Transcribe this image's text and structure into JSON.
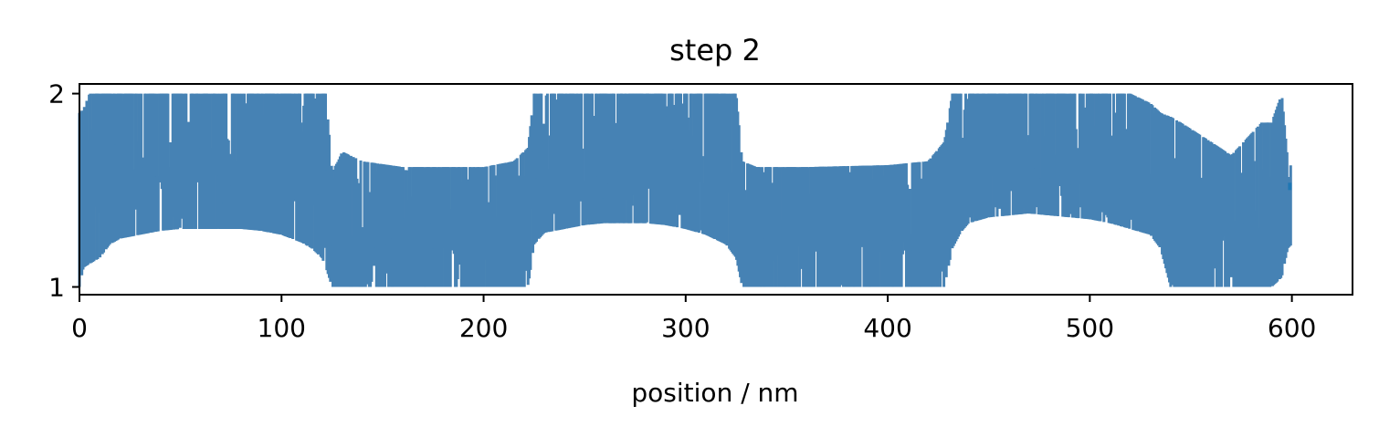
{
  "chart_data": {
    "type": "line",
    "title": "step 2",
    "xlabel": "position / nm",
    "ylabel": "",
    "xlim": [
      0,
      630
    ],
    "ylim": [
      0.96,
      2.05
    ],
    "xticks": [
      0,
      100,
      200,
      300,
      400,
      500,
      600
    ],
    "xtick_labels": [
      "0",
      "100",
      "200",
      "300",
      "400",
      "500",
      "600"
    ],
    "yticks": [
      1,
      2
    ],
    "ytick_labels": [
      "1",
      "2"
    ],
    "grid": false,
    "legend": "none",
    "series": [
      {
        "color": "#4682b4",
        "style": "dense oscillating trace; lower envelope values given",
        "x": [
          0,
          2,
          5,
          10,
          15,
          20,
          30,
          40,
          50,
          60,
          70,
          80,
          90,
          100,
          105,
          110,
          115,
          120,
          122,
          125,
          128,
          130,
          140,
          160,
          200,
          215,
          222,
          225,
          230,
          240,
          250,
          260,
          270,
          280,
          290,
          300,
          310,
          320,
          325,
          328,
          335,
          340,
          360,
          400,
          420,
          428,
          432,
          436,
          440,
          450,
          460,
          470,
          480,
          490,
          500,
          510,
          520,
          530,
          535,
          540,
          545,
          560,
          570,
          585,
          590,
          595,
          598,
          600
        ],
        "upper": [
          1.9,
          1.92,
          2.0,
          2.0,
          2.0,
          2.0,
          2.0,
          2.0,
          2.0,
          2.0,
          2.0,
          2.0,
          2.0,
          2.0,
          2.0,
          2.0,
          2.0,
          2.0,
          2.0,
          1.6,
          1.65,
          1.7,
          1.65,
          1.62,
          1.62,
          1.65,
          1.72,
          2.0,
          2.0,
          2.0,
          2.0,
          2.0,
          2.0,
          2.0,
          2.0,
          2.0,
          2.0,
          2.0,
          2.0,
          1.65,
          1.62,
          1.62,
          1.62,
          1.63,
          1.65,
          1.75,
          2.0,
          2.0,
          2.0,
          2.0,
          2.0,
          2.0,
          2.0,
          2.0,
          2.0,
          2.0,
          2.0,
          1.95,
          1.9,
          1.88,
          1.85,
          1.75,
          1.68,
          1.85,
          1.85,
          2.0,
          1.65,
          1.62
        ],
        "lower": [
          1.0,
          1.1,
          1.12,
          1.15,
          1.22,
          1.25,
          1.27,
          1.29,
          1.3,
          1.3,
          1.3,
          1.3,
          1.29,
          1.27,
          1.25,
          1.23,
          1.2,
          1.15,
          1.1,
          1.0,
          1.0,
          1.0,
          1.0,
          1.0,
          1.0,
          1.0,
          1.0,
          1.22,
          1.28,
          1.3,
          1.32,
          1.33,
          1.33,
          1.33,
          1.32,
          1.3,
          1.27,
          1.22,
          1.15,
          1.0,
          1.0,
          1.0,
          1.0,
          1.0,
          1.0,
          1.0,
          1.2,
          1.28,
          1.33,
          1.36,
          1.37,
          1.38,
          1.37,
          1.36,
          1.35,
          1.33,
          1.3,
          1.27,
          1.2,
          1.0,
          1.0,
          1.0,
          1.0,
          1.0,
          1.0,
          1.05,
          1.2,
          1.22
        ]
      }
    ]
  }
}
